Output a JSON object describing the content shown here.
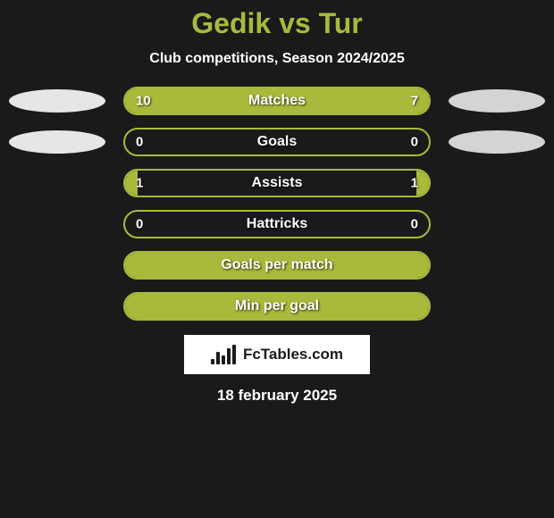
{
  "title": "Gedik vs Tur",
  "subtitle": "Club competitions, Season 2024/2025",
  "date": "18 february 2025",
  "brand": {
    "text": "FcTables.com",
    "icon_name": "bar-chart-icon"
  },
  "border_color": "#a9b93b",
  "fill_color": "#a9b93b",
  "bg_color": "#1a1a1a",
  "oval_colors": {
    "left": "#e6e6e6",
    "right": "#d4d4d4"
  },
  "badge_bg": "#ffffff",
  "rows": [
    {
      "label": "Matches",
      "left": "10",
      "right": "7",
      "lpct": 59,
      "rpct": 41,
      "show_oval": true
    },
    {
      "label": "Goals",
      "left": "0",
      "right": "0",
      "lpct": 0,
      "rpct": 0,
      "show_oval": true
    },
    {
      "label": "Assists",
      "left": "1",
      "right": "1",
      "lpct": 4,
      "rpct": 4,
      "show_oval": false
    },
    {
      "label": "Hattricks",
      "left": "0",
      "right": "0",
      "lpct": 0,
      "rpct": 0,
      "show_oval": false
    },
    {
      "label": "Goals per match",
      "left": "",
      "right": "",
      "lpct": 100,
      "rpct": 0,
      "show_oval": false
    },
    {
      "label": "Min per goal",
      "left": "",
      "right": "",
      "lpct": 100,
      "rpct": 0,
      "show_oval": false
    }
  ]
}
